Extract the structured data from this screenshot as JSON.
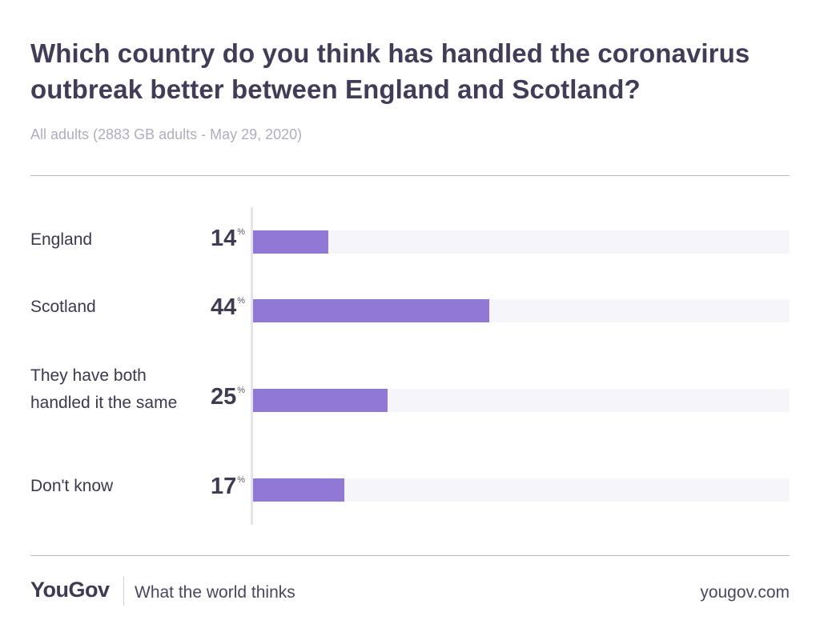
{
  "title": "Which country do you think has handled the coronavirus outbreak better between England and Scotland?",
  "subtitle": "All adults (2883 GB adults - May 29, 2020)",
  "colors": {
    "bar": "#9178d7",
    "track": "#f6f5fa",
    "text": "#423c58"
  },
  "chart_data": {
    "type": "bar",
    "orientation": "horizontal",
    "categories": [
      "England",
      "Scotland",
      "They have both handled it the same",
      "Don't know"
    ],
    "values": [
      14,
      44,
      25,
      17
    ],
    "value_labels": [
      "14",
      "44",
      "25",
      "17"
    ],
    "unit": "%",
    "xlim": [
      0,
      100
    ],
    "grid": false
  },
  "footer": {
    "logo": "YouGov",
    "tagline": "What the world thinks",
    "url": "yougov.com"
  }
}
